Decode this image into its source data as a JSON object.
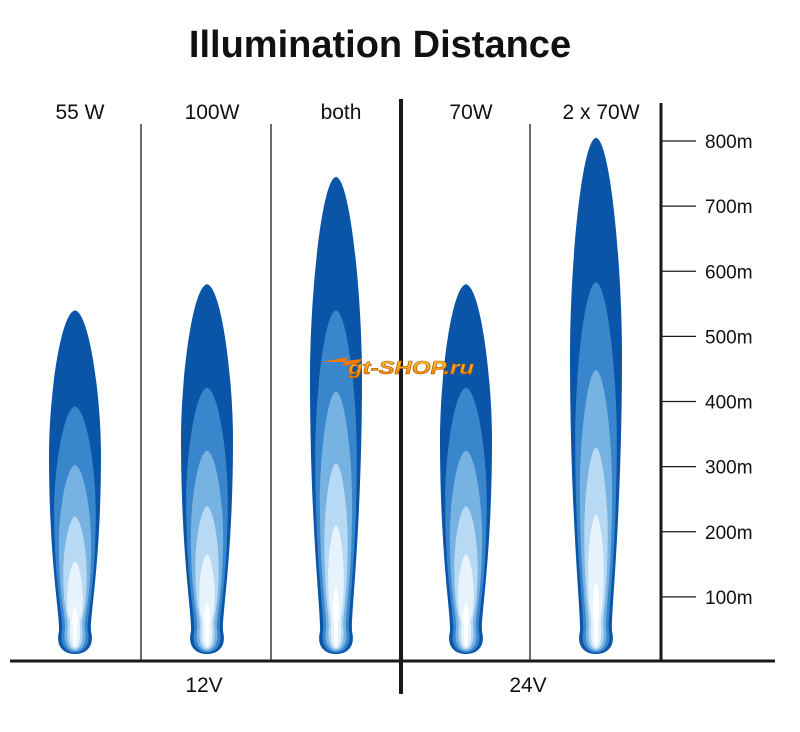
{
  "chart_data": {
    "type": "bar",
    "title": "Illumination Distance",
    "categories": [
      "55 W",
      "100W",
      "both",
      "70W",
      "2 x 70W"
    ],
    "values": [
      540,
      580,
      745,
      580,
      805
    ],
    "groups": [
      {
        "label": "12V",
        "categories": [
          "55 W",
          "100W",
          "both"
        ]
      },
      {
        "label": "24V",
        "categories": [
          "70W",
          "2 x 70W"
        ]
      }
    ],
    "y_ticks": [
      {
        "value": 100,
        "label": "100m"
      },
      {
        "value": 200,
        "label": "200m"
      },
      {
        "value": 300,
        "label": "300m"
      },
      {
        "value": 400,
        "label": "400m"
      },
      {
        "value": 500,
        "label": "500m"
      },
      {
        "value": 600,
        "label": "600m"
      },
      {
        "value": 700,
        "label": "700m"
      },
      {
        "value": 800,
        "label": "800m"
      }
    ],
    "ylim": [
      0,
      850
    ],
    "colors": [
      "#0a55a8",
      "#3a86cc",
      "#76b2e2",
      "#b7d9f3",
      "#e6f3fc",
      "#ffffff"
    ],
    "watermark": "gt-SHOP.ru"
  }
}
